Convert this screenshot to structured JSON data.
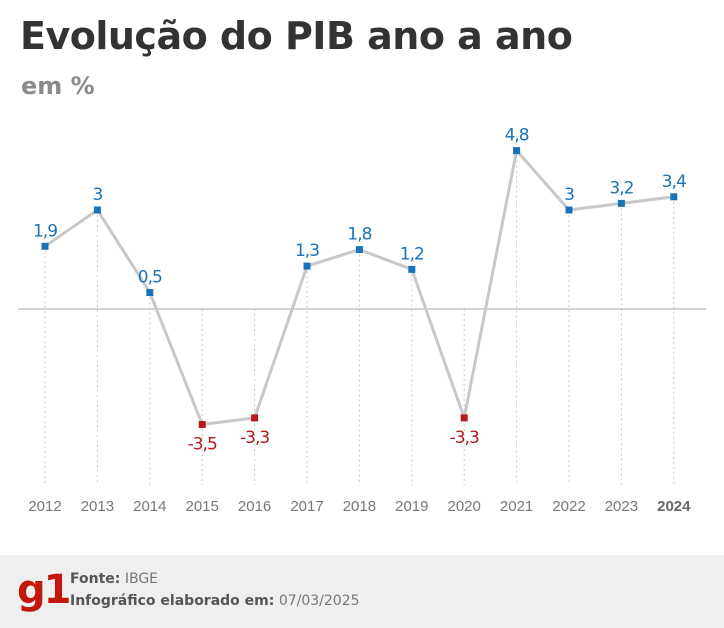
{
  "header": {
    "title": "Evolução do PIB ano a ano",
    "subtitle": "em %"
  },
  "chart_data": {
    "type": "line",
    "title": "Evolução do PIB ano a ano",
    "subtitle": "em %",
    "categories": [
      "2012",
      "2013",
      "2014",
      "2015",
      "2016",
      "2017",
      "2018",
      "2019",
      "2020",
      "2021",
      "2022",
      "2023",
      "2024"
    ],
    "values": [
      1.9,
      3,
      0.5,
      -3.5,
      -3.3,
      1.3,
      1.8,
      1.2,
      -3.3,
      4.8,
      3,
      3.2,
      3.4
    ],
    "value_labels": [
      "1,9",
      "3",
      "0,5",
      "-3,5",
      "-3,3",
      "1,3",
      "1,8",
      "1,2",
      "-3,3",
      "4,8",
      "3",
      "3,2",
      "3,4"
    ],
    "bold_category": "2024",
    "ylim": [
      -5,
      6
    ],
    "zero_line": true,
    "grid": "vertical dashed",
    "colors": {
      "line": "#c8c8c8",
      "positive": "#1a73b8",
      "negative": "#b5191f",
      "axis_text": "#777777",
      "zero_line": "#aaaaaa"
    }
  },
  "footer": {
    "logo": "g1",
    "source_label": "Fonte:",
    "source_value": "IBGE",
    "date_label": "Infográfico elaborado em:",
    "date_value": "07/03/2025"
  }
}
